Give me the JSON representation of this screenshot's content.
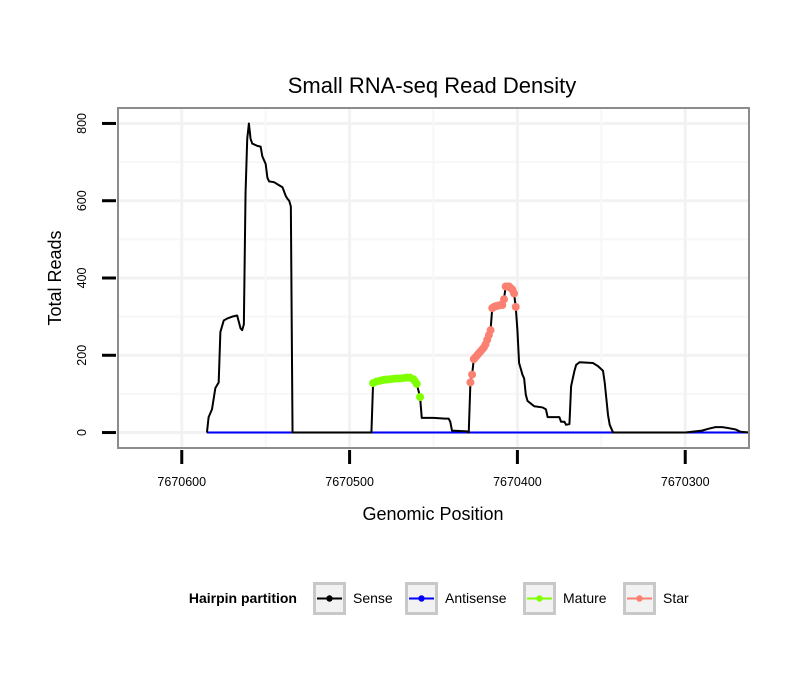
{
  "chart_data": {
    "type": "line",
    "title": "Small RNA-seq Read Density",
    "xlabel": "Genomic Position",
    "ylabel": "Total Reads",
    "x_reversed": true,
    "xlim": [
      7670638,
      7670262
    ],
    "ylim": [
      -40,
      840
    ],
    "x_ticks": [
      7670600,
      7670500,
      7670400,
      7670300
    ],
    "x_tick_labels": [
      "7670600",
      "7670500",
      "7670400",
      "7670300"
    ],
    "y_ticks": [
      0,
      200,
      400,
      600,
      800
    ],
    "y_tick_labels": [
      "0",
      "200",
      "400",
      "600",
      "800"
    ],
    "grid": true,
    "legend": {
      "title": "Hairpin partition",
      "position": "bottom",
      "entries": [
        {
          "name": "Sense",
          "color": "#000000"
        },
        {
          "name": "Antisense",
          "color": "#0000ff"
        },
        {
          "name": "Mature",
          "color": "#7fff00"
        },
        {
          "name": "Star",
          "color": "#fa8072"
        }
      ]
    },
    "series": [
      {
        "name": "Sense",
        "color": "#000000",
        "points": [
          [
            7670585,
            0
          ],
          [
            7670584,
            40
          ],
          [
            7670582,
            60
          ],
          [
            7670580,
            115
          ],
          [
            7670578,
            130
          ],
          [
            7670577,
            260
          ],
          [
            7670575,
            290
          ],
          [
            7670573,
            295
          ],
          [
            7670570,
            300
          ],
          [
            7670567,
            303
          ],
          [
            7670565,
            270
          ],
          [
            7670564,
            265
          ],
          [
            7670563,
            280
          ],
          [
            7670562,
            620
          ],
          [
            7670561,
            760
          ],
          [
            7670560,
            800
          ],
          [
            7670559,
            760
          ],
          [
            7670558,
            748
          ],
          [
            7670555,
            742
          ],
          [
            7670553,
            740
          ],
          [
            7670552,
            715
          ],
          [
            7670550,
            695
          ],
          [
            7670549,
            660
          ],
          [
            7670548,
            650
          ],
          [
            7670545,
            648
          ],
          [
            7670542,
            640
          ],
          [
            7670540,
            635
          ],
          [
            7670538,
            612
          ],
          [
            7670537,
            605
          ],
          [
            7670536,
            600
          ],
          [
            7670535,
            585
          ],
          [
            7670534,
            0
          ],
          [
            7670487,
            0
          ],
          [
            7670486,
            128
          ],
          [
            7670485,
            132
          ],
          [
            7670480,
            136
          ],
          [
            7670475,
            138
          ],
          [
            7670470,
            140
          ],
          [
            7670465,
            142
          ],
          [
            7670462,
            138
          ],
          [
            7670460,
            126
          ],
          [
            7670458,
            92
          ],
          [
            7670457,
            38
          ],
          [
            7670450,
            38
          ],
          [
            7670443,
            36
          ],
          [
            7670441,
            36
          ],
          [
            7670440,
            28
          ],
          [
            7670439,
            5
          ],
          [
            7670430,
            3
          ],
          [
            7670429,
            0
          ],
          [
            7670428,
            130
          ],
          [
            7670427,
            150
          ],
          [
            7670426,
            190
          ],
          [
            7670425,
            195
          ],
          [
            7670420,
            220
          ],
          [
            7670418,
            240
          ],
          [
            7670416,
            265
          ],
          [
            7670415,
            322
          ],
          [
            7670412,
            328
          ],
          [
            7670409,
            330
          ],
          [
            7670408,
            345
          ],
          [
            7670407,
            378
          ],
          [
            7670405,
            378
          ],
          [
            7670403,
            370
          ],
          [
            7670402,
            360
          ],
          [
            7670401,
            325
          ],
          [
            7670400,
            265
          ],
          [
            7670399,
            180
          ],
          [
            7670397,
            150
          ],
          [
            7670396,
            140
          ],
          [
            7670395,
            98
          ],
          [
            7670394,
            82
          ],
          [
            7670392,
            75
          ],
          [
            7670390,
            68
          ],
          [
            7670385,
            65
          ],
          [
            7670383,
            60
          ],
          [
            7670382,
            40
          ],
          [
            7670375,
            40
          ],
          [
            7670374,
            28
          ],
          [
            7670372,
            28
          ],
          [
            7670371,
            20
          ],
          [
            7670369,
            22
          ],
          [
            7670368,
            120
          ],
          [
            7670366,
            160
          ],
          [
            7670365,
            175
          ],
          [
            7670363,
            182
          ],
          [
            7670355,
            180
          ],
          [
            7670352,
            172
          ],
          [
            7670349,
            160
          ],
          [
            7670348,
            130
          ],
          [
            7670346,
            45
          ],
          [
            7670345,
            20
          ],
          [
            7670343,
            0
          ],
          [
            7670300,
            0
          ],
          [
            7670290,
            5
          ],
          [
            7670286,
            10
          ],
          [
            7670282,
            14
          ],
          [
            7670278,
            14
          ],
          [
            7670275,
            12
          ],
          [
            7670270,
            8
          ],
          [
            7670267,
            2
          ],
          [
            7670262,
            0
          ]
        ]
      },
      {
        "name": "Antisense",
        "color": "#0000ff",
        "points": [
          [
            7670585,
            0
          ],
          [
            7670262,
            0
          ]
        ]
      },
      {
        "name": "Mature",
        "color": "#7fff00",
        "points": [
          [
            7670486,
            128
          ],
          [
            7670484,
            132
          ],
          [
            7670482,
            134
          ],
          [
            7670480,
            136
          ],
          [
            7670478,
            137
          ],
          [
            7670476,
            138
          ],
          [
            7670474,
            139
          ],
          [
            7670472,
            140
          ],
          [
            7670470,
            140
          ],
          [
            7670468,
            141
          ],
          [
            7670466,
            142
          ],
          [
            7670464,
            142
          ],
          [
            7670462,
            138
          ],
          [
            7670461,
            133
          ],
          [
            7670460,
            126
          ],
          [
            7670458,
            92
          ]
        ]
      },
      {
        "name": "Star",
        "color": "#fa8072",
        "points": [
          [
            7670428,
            130
          ],
          [
            7670427,
            150
          ],
          [
            7670426,
            190
          ],
          [
            7670425,
            195
          ],
          [
            7670424,
            200
          ],
          [
            7670423,
            205
          ],
          [
            7670422,
            210
          ],
          [
            7670421,
            215
          ],
          [
            7670420,
            220
          ],
          [
            7670419,
            228
          ],
          [
            7670418,
            240
          ],
          [
            7670417,
            252
          ],
          [
            7670416,
            265
          ],
          [
            7670415,
            322
          ],
          [
            7670414,
            325
          ],
          [
            7670413,
            327
          ],
          [
            7670412,
            328
          ],
          [
            7670411,
            329
          ],
          [
            7670410,
            330
          ],
          [
            7670409,
            330
          ],
          [
            7670408,
            345
          ],
          [
            7670407,
            378
          ],
          [
            7670406,
            378
          ],
          [
            7670405,
            378
          ],
          [
            7670404,
            374
          ],
          [
            7670403,
            370
          ],
          [
            7670402,
            360
          ],
          [
            7670401,
            325
          ]
        ]
      }
    ]
  }
}
